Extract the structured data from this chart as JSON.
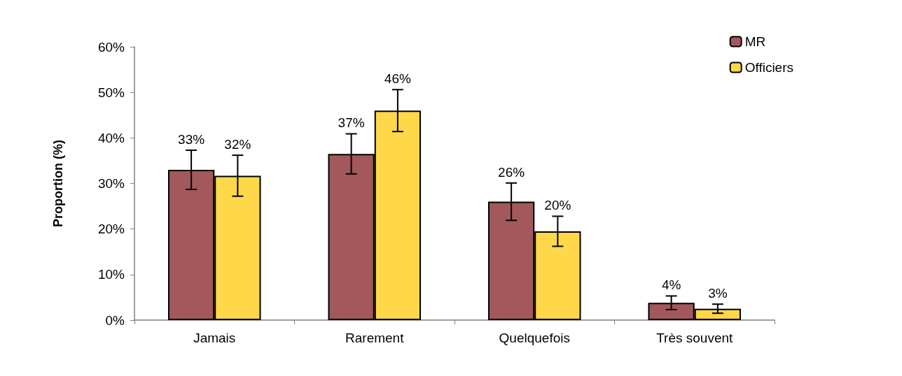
{
  "chart_data": {
    "type": "bar",
    "ylabel": "Proportion (%)",
    "categories": [
      "Jamais",
      "Rarement",
      "Quelquefois",
      "Très souvent"
    ],
    "series": [
      {
        "name": "MR",
        "color": "#a3585c",
        "values": [
          33,
          36.5,
          26,
          3.8
        ],
        "errors": [
          4.3,
          4.4,
          4.1,
          1.5
        ],
        "value_labels": [
          "33%",
          "37%",
          "26%",
          "4%"
        ]
      },
      {
        "name": "Officiers",
        "color": "#ffd84a",
        "values": [
          31.7,
          46,
          19.5,
          2.5
        ],
        "errors": [
          4.5,
          4.6,
          3.3,
          1
        ],
        "value_labels": [
          "32%",
          "46%",
          "20%",
          "3%"
        ]
      }
    ],
    "ylim": [
      0,
      60
    ],
    "yticks": [
      {
        "value": 0,
        "label": "0%"
      },
      {
        "value": 10,
        "label": "10%"
      },
      {
        "value": 20,
        "label": "20%"
      },
      {
        "value": 30,
        "label": "30%"
      },
      {
        "value": 40,
        "label": "40%"
      },
      {
        "value": 50,
        "label": "50%"
      },
      {
        "value": 60,
        "label": "60%"
      }
    ],
    "grid": false,
    "legend": "top right"
  }
}
